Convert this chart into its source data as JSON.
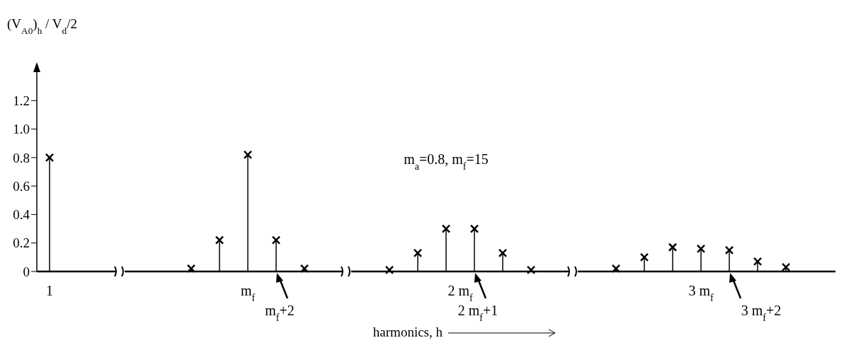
{
  "chart_data": {
    "type": "lollipop",
    "ylabel": "(V$_{A0}$)$_{h}$ / V$_{d}$/2",
    "xlabel": "harmonics, h",
    "marker": "cross",
    "color": "#000000",
    "categories": [
      "1",
      null,
      null,
      null,
      null,
      null,
      null,
      null,
      null,
      null,
      null,
      null,
      null,
      null,
      "m$_{f}$",
      null,
      null,
      null,
      null,
      null,
      null,
      null,
      null,
      null,
      null,
      null,
      null,
      null,
      null,
      "2 m$_{f}$",
      null,
      null,
      null,
      null,
      null,
      null,
      null,
      null,
      null,
      null,
      null,
      null,
      null,
      null,
      null,
      null,
      "3 m$_{f}$",
      null,
      null,
      null,
      null,
      null,
      null
    ],
    "values": [
      0.8,
      null,
      null,
      null,
      null,
      null,
      null,
      null,
      null,
      null,
      0.02,
      null,
      0.22,
      null,
      0.82,
      null,
      0.22,
      null,
      0.02,
      null,
      null,
      null,
      null,
      null,
      0.01,
      null,
      0.13,
      null,
      0.3,
      null,
      0.3,
      null,
      0.13,
      null,
      0.01,
      null,
      null,
      null,
      null,
      null,
      0.02,
      null,
      0.1,
      null,
      0.17,
      null,
      0.16,
      null,
      0.15,
      null,
      0.07,
      null,
      0.03
    ],
    "ylim": [
      0,
      1.4
    ],
    "yticks": [
      0,
      0.2,
      0.4,
      0.6,
      0.8,
      {
        "value": 1,
        "label": "1.0"
      },
      1.2
    ],
    "annotations": [
      "m$_{a}$=0.8,  m$_{f}$=15",
      "m$_{f}$+2",
      "2 m$_{f}$+1",
      "3 m$_{f}$+2"
    ]
  }
}
